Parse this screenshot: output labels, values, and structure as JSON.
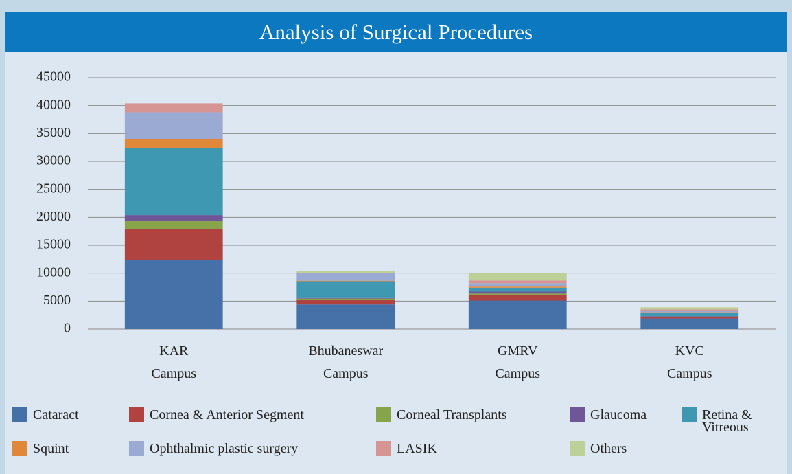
{
  "chart_data": {
    "type": "stacked_bar",
    "title": "Analysis of Surgical Procedures",
    "categories": [
      "KAR Campus",
      "Bhubaneswar Campus",
      "GMRV Campus",
      "KVC Campus"
    ],
    "series": [
      {
        "name": "Cataract",
        "color": "#4571a8",
        "values": [
          12400,
          4400,
          5100,
          1900
        ]
      },
      {
        "name": "Cornea & Anterior Segment",
        "color": "#b0433f",
        "values": [
          5550,
          850,
          1000,
          200
        ]
      },
      {
        "name": "Corneal Transplants",
        "color": "#88a44b",
        "values": [
          1450,
          200,
          250,
          100
        ]
      },
      {
        "name": "Glaucoma",
        "color": "#6f5698",
        "values": [
          1000,
          100,
          350,
          100
        ]
      },
      {
        "name": "Retina & Vitreous",
        "color": "#3f98b1",
        "values": [
          12000,
          3000,
          700,
          600
        ]
      },
      {
        "name": "Squint",
        "color": "#e0873a",
        "values": [
          1600,
          100,
          200,
          100
        ]
      },
      {
        "name": "Ophthalmic plastic surgery",
        "color": "#9aaad2",
        "values": [
          4800,
          1300,
          600,
          300
        ]
      },
      {
        "name": "LASIK",
        "color": "#d69593",
        "values": [
          1600,
          100,
          500,
          200
        ]
      },
      {
        "name": "Others",
        "color": "#bdd097",
        "values": [
          0,
          300,
          1300,
          400
        ]
      }
    ],
    "ylim": [
      0,
      45000
    ],
    "yticks": [
      0,
      5000,
      10000,
      15000,
      20000,
      25000,
      30000,
      35000,
      40000,
      45000
    ],
    "grid": true
  }
}
